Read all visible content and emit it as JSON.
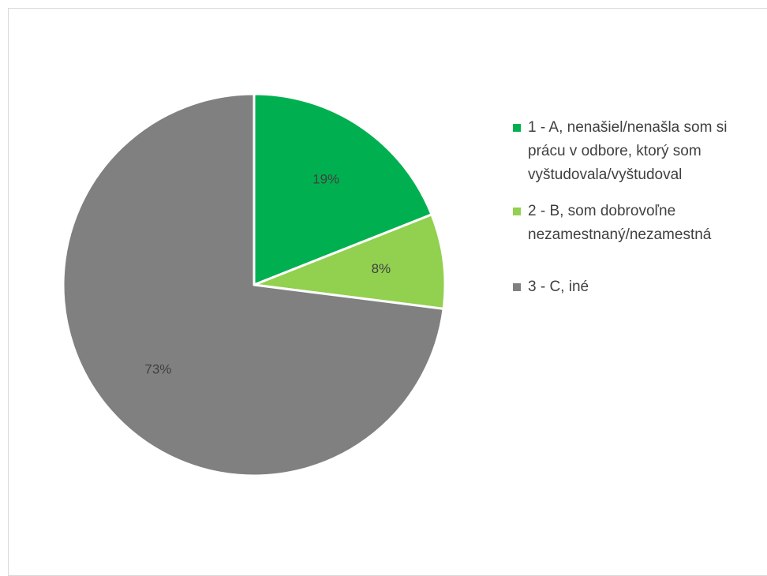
{
  "chart_data": {
    "type": "pie",
    "title": "",
    "start_angle_deg": 0,
    "direction": "clockwise",
    "slices": [
      {
        "label": "1 - A, nenašiel/nenašla som si prácu v odbore, ktorý som vyštudovala/vyštudoval",
        "value": 19,
        "display": "19%",
        "color": "#00b050"
      },
      {
        "label": "2 - B, som dobrovoľne nezamestnaný/nezamestná",
        "value": 8,
        "display": "8%",
        "color": "#92d050"
      },
      {
        "label": "3 - C, iné",
        "value": 73,
        "display": "73%",
        "color": "#808080"
      }
    ],
    "legend_position": "right",
    "slice_border_color": "#ffffff"
  },
  "legend": {
    "items": [
      {
        "label": "1 - A, nenašiel/nenašla som si prácu v odbore, ktorý som vyštudovala/vyštudoval",
        "color": "#00b050"
      },
      {
        "label": "2 - B, som dobrovoľne nezamestnaný/nezamestná",
        "color": "#92d050"
      },
      {
        "label": "3 - C, iné",
        "color": "#808080"
      }
    ]
  }
}
